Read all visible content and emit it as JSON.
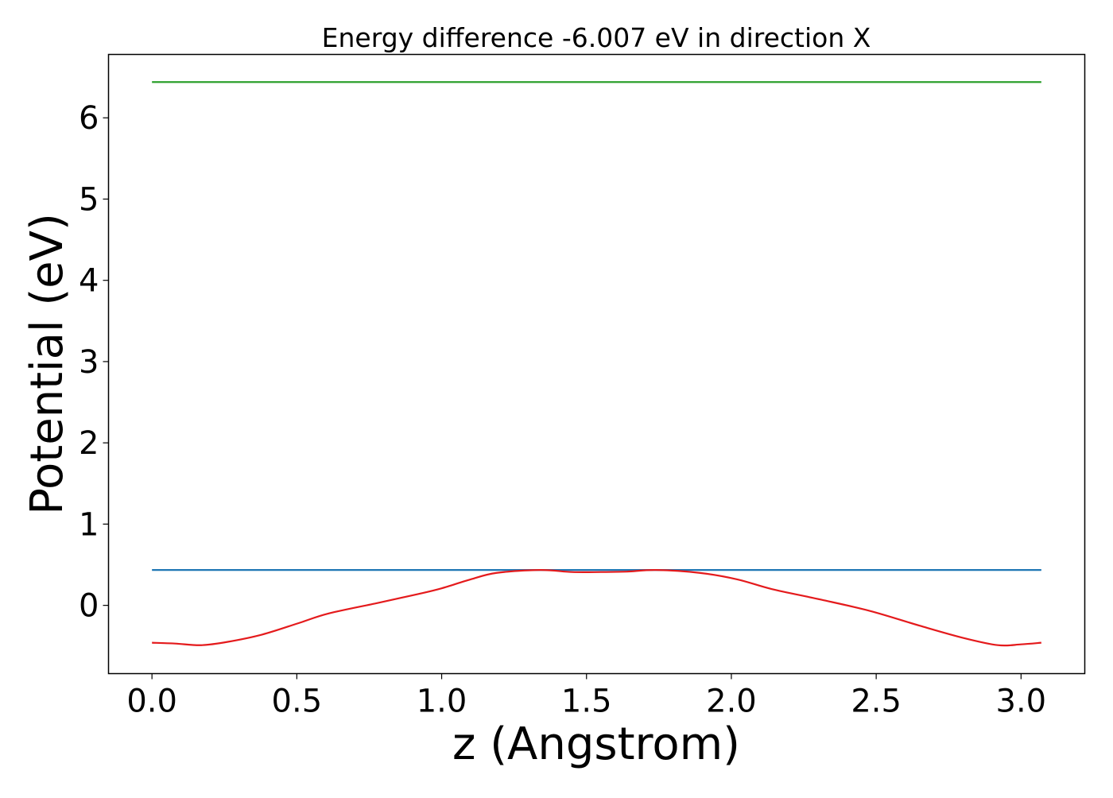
{
  "chart_data": {
    "type": "line",
    "title": "Energy difference -6.007 eV in direction X",
    "xlabel": "z (Angstrom)",
    "ylabel": "Potential (eV)",
    "xlim": [
      -0.15,
      3.22
    ],
    "ylim": [
      -0.84,
      6.78
    ],
    "xticks": [
      0.0,
      0.5,
      1.0,
      1.5,
      2.0,
      2.5,
      3.0
    ],
    "xtick_labels": [
      "0.0",
      "0.5",
      "1.0",
      "1.5",
      "2.0",
      "2.5",
      "3.0"
    ],
    "yticks": [
      0,
      1,
      2,
      3,
      4,
      5,
      6
    ],
    "ytick_labels": [
      "0",
      "1",
      "2",
      "3",
      "4",
      "5",
      "6"
    ],
    "grid": false,
    "series": [
      {
        "color": "#2ca02c",
        "x": [
          0.0,
          3.07
        ],
        "y": [
          6.44,
          6.44
        ]
      },
      {
        "color": "#1f77b4",
        "x": [
          0.0,
          3.07
        ],
        "y": [
          0.435,
          0.435
        ]
      },
      {
        "color": "#e41a1c",
        "x": [
          0.0,
          0.08,
          0.17,
          0.26,
          0.38,
          0.505,
          0.61,
          0.78,
          0.92,
          1.0,
          1.1,
          1.19,
          1.34,
          1.45,
          1.55,
          1.64,
          1.74,
          1.89,
          2.02,
          2.14,
          2.31,
          2.48,
          2.65,
          2.8,
          2.92,
          3.0,
          3.07
        ],
        "y": [
          -0.46,
          -0.47,
          -0.49,
          -0.45,
          -0.36,
          -0.22,
          -0.1,
          0.03,
          0.14,
          0.21,
          0.32,
          0.4,
          0.435,
          0.41,
          0.41,
          0.415,
          0.435,
          0.4,
          0.32,
          0.2,
          0.07,
          -0.07,
          -0.25,
          -0.4,
          -0.49,
          -0.48,
          -0.46
        ]
      }
    ]
  }
}
